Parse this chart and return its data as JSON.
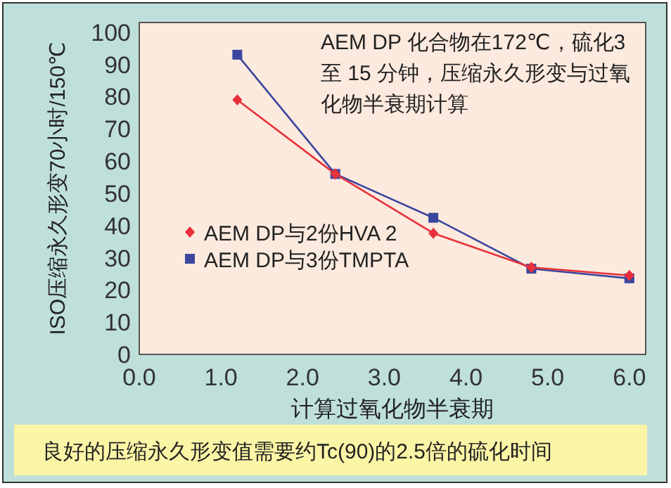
{
  "chart_data": {
    "type": "line",
    "xlabel": "计算过氧化物半衰期",
    "ylabel": "ISO压缩永久形变70小时/150℃",
    "x": [
      1.2,
      2.4,
      3.6,
      4.8,
      6.0
    ],
    "series": [
      {
        "name": "AEM DP与2份HVA 2",
        "color": "#e8303a",
        "marker": "diamond",
        "values": [
          79,
          56,
          37.6,
          27,
          24.5
        ]
      },
      {
        "name": "AEM DP与3份TMPTA",
        "color": "#3a46a0",
        "marker": "square",
        "values": [
          93,
          56,
          42.4,
          26.6,
          23.6
        ]
      }
    ],
    "xlim": [
      0,
      6.2
    ],
    "ylim": [
      0,
      103
    ],
    "xticks": [
      {
        "value": 0,
        "label": "0.0"
      },
      {
        "value": 1,
        "label": "1.0"
      },
      {
        "value": 2,
        "label": "2.0"
      },
      {
        "value": 3,
        "label": "3.0"
      },
      {
        "value": 4,
        "label": "4.0"
      },
      {
        "value": 5,
        "label": "5.0"
      },
      {
        "value": 6,
        "label": "6.0"
      }
    ],
    "yticks": [
      0,
      10,
      20,
      30,
      40,
      50,
      60,
      70,
      80,
      90,
      100
    ],
    "grid": false,
    "legend": "left",
    "annotations": [
      "AEM DP 化合物在172℃，硫化3 至 15 分钟，压缩永久形变与过氧化物半衰期计算",
      "良好的压缩永久形变值需要约Tc(90)的2.5倍的硫化时间"
    ]
  }
}
